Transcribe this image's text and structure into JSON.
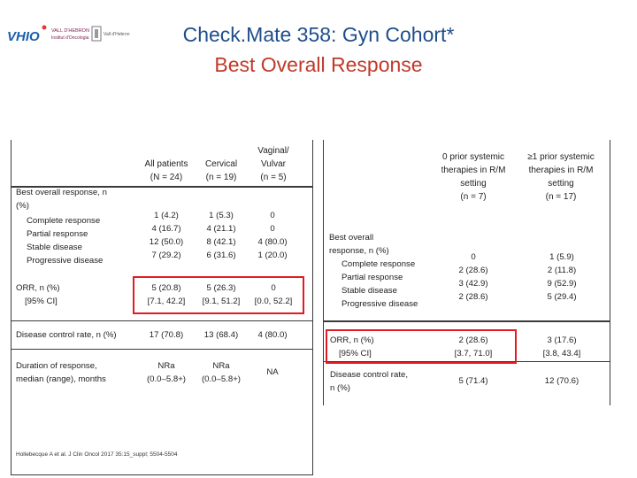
{
  "title": "Check.Mate 358: Gyn Cohort*",
  "subtitle": "Best Overall Response",
  "logos": {
    "vhio": "VHIO",
    "hospital": "VALL D'HEBRON",
    "hospital_sub": "Institut d'Oncologia",
    "campus": "Vall d'Hebron"
  },
  "left_table": {
    "headers": {
      "all": "All patients\n(N = 24)",
      "cervical": "Cervical\n(n = 19)",
      "vaginal": "Vaginal/\nVulvar\n(n = 5)"
    },
    "response_label": "Best overall response, n\n(%)",
    "response_items": "Complete response\nPartial response\nStable disease\nProgressive disease",
    "response_all": "1 (4.2)\n4 (16.7)\n12 (50.0)\n7 (29.2)",
    "response_cerv": "1 (5.3)\n4 (21.1)\n8 (42.1)\n6 (31.6)",
    "response_vag": "0\n0\n4 (80.0)\n1 (20.0)",
    "orr_label": "ORR, n (%)",
    "orr_ci_label": "[95% CI]",
    "orr_all": "5 (20.8)\n[7.1, 42.2]",
    "orr_cerv": "5 (26.3)\n[9.1, 51.2]",
    "orr_vag": "0\n[0.0, 52.2]",
    "dcr_label": "Disease control rate, n (%)",
    "dcr_all": "17 (70.8)",
    "dcr_cerv": "13 (68.4)",
    "dcr_vag": "4 (80.0)",
    "dor_label": "Duration of response,\nmedian (range), months",
    "dor_all": "NRa\n(0.0–5.8+)",
    "dor_cerv": "NRa\n(0.0–5.8+)",
    "dor_vag": "NA"
  },
  "right_table": {
    "headers": {
      "zero": "0 prior systemic\ntherapies in R/M\nsetting\n(n = 7)",
      "one": "≥1 prior systemic\ntherapies in R/M\nsetting\n(n = 17)"
    },
    "response_label": "Best overall\nresponse, n (%)",
    "response_items": "Complete response\nPartial response\nStable disease\nProgressive disease",
    "response_zero": "0\n2 (28.6)\n3 (42.9)\n2 (28.6)",
    "response_one": "1 (5.9)\n2 (11.8)\n9 (52.9)\n5 (29.4)",
    "orr_label": "ORR, n (%)",
    "orr_ci_label": "[95% CI]",
    "orr_zero": "2 (28.6)\n[3.7, 71.0]",
    "orr_one": "3 (17.6)\n[3.8, 43.4]",
    "dcr_label": "Disease control rate,\nn (%)",
    "dcr_zero": "5 (71.4)",
    "dcr_one": "12 (70.6)"
  },
  "reference": "Hollebecque A et al. J Clin Oncol 2017 35:15_suppl; 5504-5504",
  "colors": {
    "title": "#1f4e8c",
    "subtitle": "#c0392b",
    "highlight": "#e21b23"
  }
}
